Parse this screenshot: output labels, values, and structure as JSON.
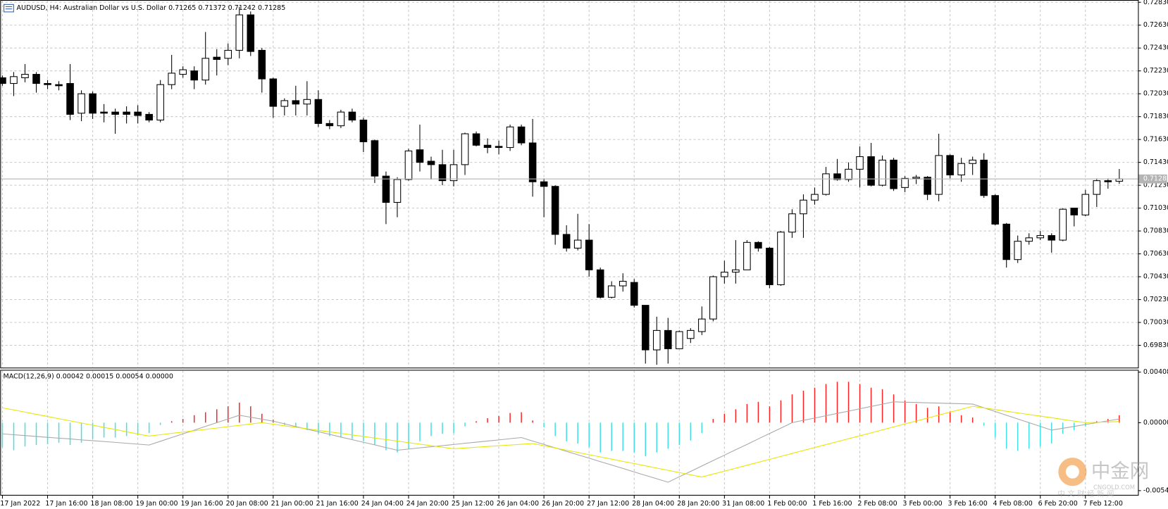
{
  "chart_data": [
    {
      "type": "candlestick",
      "title": "AUDUSD, H4:  Australian Dollar vs U.S. Dollar  0.71265 0.71372 0.71242 0.71285",
      "categories": [
        "17 Jan 2022",
        null,
        null,
        null,
        "17 Jan 16:00",
        null,
        null,
        null,
        "18 Jan 08:00",
        null,
        null,
        null,
        "19 Jan 00:00",
        null,
        null,
        null,
        "19 Jan 16:00",
        null,
        null,
        null,
        "20 Jan 08:00",
        null,
        null,
        null,
        "21 Jan 00:00",
        null,
        null,
        null,
        "21 Jan 16:00",
        null,
        null,
        null,
        "24 Jan 04:00",
        null,
        null,
        null,
        "24 Jan 20:00",
        null,
        null,
        null,
        "25 Jan 12:00",
        null,
        null,
        null,
        "26 Jan 04:00",
        null,
        null,
        null,
        "26 Jan 20:00",
        null,
        null,
        null,
        "27 Jan 12:00",
        null,
        null,
        null,
        "28 Jan 04:00",
        null,
        null,
        null,
        "28 Jan 20:00",
        null,
        null,
        null,
        "31 Jan 08:00",
        null,
        null,
        null,
        "1 Feb 00:00",
        null,
        null,
        null,
        "1 Feb 16:00",
        null,
        null,
        null,
        "2 Feb 08:00",
        null,
        null,
        null,
        "3 Feb 00:00",
        null,
        null,
        null,
        "3 Feb 16:00",
        null,
        null,
        null,
        "4 Feb 08:00",
        null,
        null,
        null,
        "6 Feb 20:00",
        null,
        null,
        null,
        "7 Feb 12:00",
        null,
        null,
        null
      ],
      "open": [
        0.7217,
        0.7212,
        0.7217,
        0.722,
        0.7212,
        0.7211,
        0.7212,
        0.7186,
        0.7203,
        0.7187,
        0.7187,
        0.7187,
        0.7187,
        0.7185,
        0.718,
        0.7211,
        0.722,
        0.7223,
        0.7215,
        0.7235,
        0.7234,
        0.7241,
        0.7272,
        0.7241,
        0.7216,
        0.7192,
        0.7197,
        0.7194,
        0.7198,
        0.7177,
        0.7175,
        0.7187,
        0.718,
        0.7162,
        0.7131,
        0.7108,
        0.7128,
        0.7154,
        0.7144,
        0.7141,
        0.7127,
        0.7141,
        0.7168,
        0.7158,
        0.7157,
        0.7156,
        0.7174,
        0.716,
        0.7126,
        0.7122,
        0.708,
        0.7068,
        0.7075,
        0.7049,
        0.7025,
        0.7035,
        0.7038,
        0.7018,
        0.6979,
        0.6996,
        0.698,
        0.6989,
        0.6995,
        0.7006,
        0.7043,
        0.7047,
        0.7049,
        0.7073,
        0.7068,
        0.7036,
        0.7082,
        0.7098,
        0.711,
        0.7115,
        0.7133,
        0.7128,
        0.7137,
        0.7148,
        0.7123,
        0.7145,
        0.7121,
        0.7129,
        0.713,
        0.7115,
        0.7149,
        0.7132,
        0.7142,
        0.7145,
        0.7114,
        0.7089,
        0.7058,
        0.7074,
        0.7077,
        0.7079,
        0.7075,
        0.7103,
        0.7097,
        0.7115,
        0.7127,
        0.71265
      ],
      "high": [
        0.7219,
        0.7222,
        0.7229,
        0.7222,
        0.7215,
        0.7214,
        0.7229,
        0.7206,
        0.7205,
        0.7194,
        0.719,
        0.7192,
        0.7193,
        0.7187,
        0.7215,
        0.7237,
        0.7227,
        0.7227,
        0.7257,
        0.7242,
        0.7247,
        0.7279,
        0.7275,
        0.7243,
        0.7217,
        0.7199,
        0.721,
        0.7214,
        0.7206,
        0.718,
        0.7189,
        0.719,
        0.7182,
        0.7163,
        0.7135,
        0.713,
        0.7155,
        0.7176,
        0.7148,
        0.7154,
        0.7154,
        0.7169,
        0.717,
        0.7164,
        0.7162,
        0.7176,
        0.7176,
        0.7181,
        0.7129,
        0.7123,
        0.7088,
        0.7098,
        0.7089,
        0.7051,
        0.7039,
        0.7046,
        0.7041,
        0.7018,
        0.7008,
        0.7007,
        0.6996,
        0.6998,
        0.7017,
        0.7044,
        0.7057,
        0.7075,
        0.7075,
        0.7074,
        0.7069,
        0.7083,
        0.7102,
        0.7115,
        0.7121,
        0.7139,
        0.7146,
        0.7143,
        0.7157,
        0.716,
        0.7149,
        0.7147,
        0.7131,
        0.7132,
        0.7131,
        0.7168,
        0.715,
        0.7147,
        0.7148,
        0.7151,
        0.7115,
        0.709,
        0.7079,
        0.7081,
        0.7083,
        0.7081,
        0.7103,
        0.7103,
        0.7119,
        0.7129,
        0.7129,
        0.71372
      ],
      "low": [
        0.721,
        0.7201,
        0.7213,
        0.7204,
        0.7207,
        0.7206,
        0.718,
        0.7179,
        0.7181,
        0.7178,
        0.7168,
        0.7177,
        0.7177,
        0.7178,
        0.7178,
        0.7207,
        0.7217,
        0.7207,
        0.7211,
        0.7219,
        0.7228,
        0.7234,
        0.7236,
        0.7204,
        0.7182,
        0.7184,
        0.7184,
        0.7184,
        0.7174,
        0.7172,
        0.7173,
        0.7178,
        0.7152,
        0.7125,
        0.7089,
        0.7095,
        0.7127,
        0.7135,
        0.7128,
        0.7123,
        0.7122,
        0.7132,
        0.7157,
        0.7151,
        0.715,
        0.7153,
        0.7158,
        0.7113,
        0.7095,
        0.7071,
        0.7065,
        0.7066,
        0.7043,
        0.7024,
        0.7024,
        0.703,
        0.7016,
        0.6967,
        0.6966,
        0.6967,
        0.698,
        0.6985,
        0.6992,
        0.7004,
        0.7037,
        0.7037,
        0.7049,
        0.7065,
        0.7033,
        0.7035,
        0.7077,
        0.7077,
        0.7106,
        0.7114,
        0.7127,
        0.7126,
        0.7121,
        0.7122,
        0.7122,
        0.7118,
        0.7117,
        0.7124,
        0.711,
        0.7109,
        0.7129,
        0.7126,
        0.7132,
        0.7112,
        0.7088,
        0.7051,
        0.7055,
        0.7071,
        0.7075,
        0.7064,
        0.7074,
        0.7087,
        0.7096,
        0.7104,
        0.712,
        0.71242
      ],
      "close": [
        0.7212,
        0.7218,
        0.722,
        0.7212,
        0.7211,
        0.721,
        0.7185,
        0.7203,
        0.7186,
        0.7186,
        0.7185,
        0.7185,
        0.7184,
        0.718,
        0.7211,
        0.7221,
        0.7224,
        0.7215,
        0.7234,
        0.7233,
        0.7241,
        0.7272,
        0.724,
        0.7216,
        0.7192,
        0.7197,
        0.7194,
        0.7198,
        0.7177,
        0.7175,
        0.7187,
        0.718,
        0.7161,
        0.7131,
        0.7108,
        0.7128,
        0.7153,
        0.7143,
        0.7141,
        0.7127,
        0.7141,
        0.7168,
        0.7158,
        0.7156,
        0.7156,
        0.7174,
        0.716,
        0.7126,
        0.7122,
        0.708,
        0.7068,
        0.7075,
        0.7049,
        0.7025,
        0.7035,
        0.7039,
        0.7018,
        0.6979,
        0.6996,
        0.698,
        0.6995,
        0.6996,
        0.7006,
        0.7043,
        0.7047,
        0.7049,
        0.7073,
        0.7068,
        0.7036,
        0.7082,
        0.7098,
        0.711,
        0.7115,
        0.7133,
        0.7128,
        0.7137,
        0.7148,
        0.7123,
        0.7145,
        0.712,
        0.7129,
        0.713,
        0.7115,
        0.7149,
        0.7132,
        0.7142,
        0.7145,
        0.7114,
        0.7089,
        0.7058,
        0.7074,
        0.7077,
        0.7079,
        0.7075,
        0.7102,
        0.7097,
        0.7115,
        0.7127,
        0.7126,
        0.71285
      ],
      "up_color": "#ffffff",
      "down_color": "#000000",
      "wick_color": "#000000",
      "last_price_color": "#b4b4b4",
      "ylim": [
        0.69635,
        0.7285
      ],
      "yticks": [
        {
          "value": 0.7283,
          "label": "0.72830"
        },
        {
          "value": 0.7263,
          "label": "0.72630"
        },
        {
          "value": 0.7243,
          "label": "0.72430"
        },
        {
          "value": 0.7223,
          "label": "0.72230"
        },
        {
          "value": 0.7203,
          "label": "0.72030"
        },
        {
          "value": 0.7183,
          "label": "0.71830"
        },
        {
          "value": 0.7163,
          "label": "0.71630"
        },
        {
          "value": 0.7143,
          "label": "0.71430"
        },
        {
          "value": 0.7123,
          "label": "0.71230"
        },
        {
          "value": 0.7103,
          "label": "0.71030"
        },
        {
          "value": 0.7083,
          "label": "0.70830"
        },
        {
          "value": 0.7063,
          "label": "0.70630"
        },
        {
          "value": 0.7043,
          "label": "0.70430"
        },
        {
          "value": 0.7023,
          "label": "0.70230"
        },
        {
          "value": 0.7003,
          "label": "0.70030"
        },
        {
          "value": 0.6983,
          "label": "0.69830"
        }
      ],
      "grid": true
    },
    {
      "type": "macd",
      "title": "MACD(12,26,9) 0.00042 0.00015 0.00054 0.00000",
      "ylim": [
        -0.00582,
        0.00426
      ],
      "yticks": [
        0.00408,
        {
          "value": 0,
          "label": "0.00000"
        },
        -0.00548
      ],
      "grid": false,
      "series": [
        {
          "style": "bar",
          "up_color": "#ff2020",
          "down_color": "#3fe0e8",
          "values": [
            -0.00198,
            -0.00222,
            -0.00192,
            -0.0018,
            -0.00174,
            -0.00162,
            -0.0018,
            -0.00162,
            -0.00132,
            -0.0012,
            -0.0012,
            -0.00108,
            -0.00102,
            -0.00084,
            -0.00018,
            0.00012,
            0.0003,
            0.0006,
            0.00084,
            0.00108,
            0.00132,
            0.00162,
            0.00132,
            0.00072,
            0.00024,
            -0.00018,
            -0.00036,
            -0.0006,
            -0.0009,
            -0.00108,
            -0.0012,
            -0.00132,
            -0.0015,
            -0.0018,
            -0.00222,
            -0.0024,
            -0.0021,
            -0.0015,
            -0.00108,
            -0.0009,
            -0.00084,
            -0.0003,
            0.00012,
            0.00036,
            0.00054,
            0.00078,
            0.00084,
            0.00018,
            -0.00036,
            -0.00108,
            -0.0015,
            -0.00168,
            -0.00198,
            -0.0024,
            -0.00228,
            -0.00228,
            -0.0024,
            -0.0027,
            -0.0024,
            -0.0021,
            -0.0018,
            -0.00144,
            -0.00084,
            0.0003,
            0.00072,
            0.00108,
            0.0015,
            0.00168,
            0.00132,
            0.0018,
            0.00228,
            0.00258,
            0.00282,
            0.00312,
            0.0033,
            0.0033,
            0.00312,
            0.00282,
            0.0027,
            0.00228,
            0.0018,
            0.0015,
            0.0012,
            0.00132,
            0.0009,
            0.0006,
            0.00042,
            -0.00024,
            -0.0012,
            -0.0021,
            -0.00228,
            -0.0021,
            -0.00192,
            -0.00168,
            -0.0009,
            -0.0006,
            -0.0003,
            0.00012,
            0.0003,
            0.0006
          ]
        },
        {
          "style": "line",
          "color": "#a8a8a8",
          "values": [
            -0.0009,
            -0.00097,
            -0.00104,
            -0.00111,
            -0.00118,
            -0.00125,
            -0.00131,
            -0.00139,
            -0.00145,
            -0.00152,
            -0.00159,
            -0.00166,
            -0.00173,
            -0.0018,
            -0.0015,
            -0.0012,
            -0.0009,
            -0.0006,
            -0.0003,
            0,
            0.0003,
            0.0006,
            0.00044,
            0.00028,
            0.00012,
            -9e-05,
            -0.00031,
            -0.00052,
            -0.00073,
            -0.00094,
            -0.00116,
            -0.00137,
            -0.00158,
            -0.00179,
            -0.00201,
            -0.00222,
            -0.00213,
            -0.00203,
            -0.00194,
            -0.00185,
            -0.00176,
            -0.00166,
            -0.00157,
            -0.00148,
            -0.00139,
            -0.00129,
            -0.0012,
            -0.00148,
            -0.00175,
            -0.00203,
            -0.00231,
            -0.00259,
            -0.00286,
            -0.00314,
            -0.00341,
            -0.00369,
            -0.00397,
            -0.00425,
            -0.00452,
            -0.0048,
            -0.00436,
            -0.00393,
            -0.00349,
            -0.00305,
            -0.00262,
            -0.00218,
            -0.00175,
            -0.00131,
            -0.00087,
            -0.00044,
            0,
            0.00019,
            0.00037,
            0.00056,
            0.00075,
            0.00093,
            0.00112,
            0.00131,
            0.00149,
            0.00168,
            0.00165,
            0.00163,
            0.0016,
            0.00158,
            0.00155,
            0.00153,
            0.0015,
            0.0012,
            0.0009,
            0.0006,
            0.0003,
            0,
            -0.0003,
            -0.0006,
            -0.00045,
            -0.0003,
            -0.00015,
            0,
            0.00015,
            0.0003
          ]
        },
        {
          "style": "line",
          "color": "#e6e600",
          "values": [
            0.0012,
            0.00103,
            0.00085,
            0.00067,
            0.0005,
            0.00032,
            0.00015,
            -3e-05,
            -0.0002,
            -0.00038,
            -0.00055,
            -0.00073,
            -0.00091,
            -0.00108,
            -0.00097,
            -0.00086,
            -0.00076,
            -0.00065,
            -0.00054,
            -0.00043,
            -0.00032,
            -0.00022,
            -0.00011,
            0,
            -0.00012,
            -0.00025,
            -0.00037,
            -0.00049,
            -0.00062,
            -0.00074,
            -0.00086,
            -0.00099,
            -0.00111,
            -0.00124,
            -0.00136,
            -0.00148,
            -0.00161,
            -0.00173,
            -0.00185,
            -0.00198,
            -0.0021,
            -0.00204,
            -0.00198,
            -0.00192,
            -0.00186,
            -0.0018,
            -0.00174,
            -0.00168,
            -0.00186,
            -0.00204,
            -0.00222,
            -0.0024,
            -0.00258,
            -0.00276,
            -0.00294,
            -0.00312,
            -0.0033,
            -0.00348,
            -0.00366,
            -0.00384,
            -0.00402,
            -0.0042,
            -0.00438,
            -0.00414,
            -0.00391,
            -0.00367,
            -0.00343,
            -0.00319,
            -0.00296,
            -0.00272,
            -0.00248,
            -0.00224,
            -0.002,
            -0.00177,
            -0.00153,
            -0.00129,
            -0.00106,
            -0.00082,
            -0.00058,
            -0.00034,
            -0.0001,
            0.00013,
            0.00037,
            0.00061,
            0.00085,
            0.00108,
            0.00132,
            0.00119,
            0.00106,
            0.00092,
            0.00079,
            0.00066,
            0.00053,
            0.0004,
            0.00026,
            0.00013,
            0,
            3e-05,
            6e-05,
            9e-05
          ]
        }
      ]
    }
  ],
  "watermark": {
    "name": "中金网",
    "site": "CNGOLD.COM",
    "tagline": "中 文 财 经 新 闻"
  }
}
